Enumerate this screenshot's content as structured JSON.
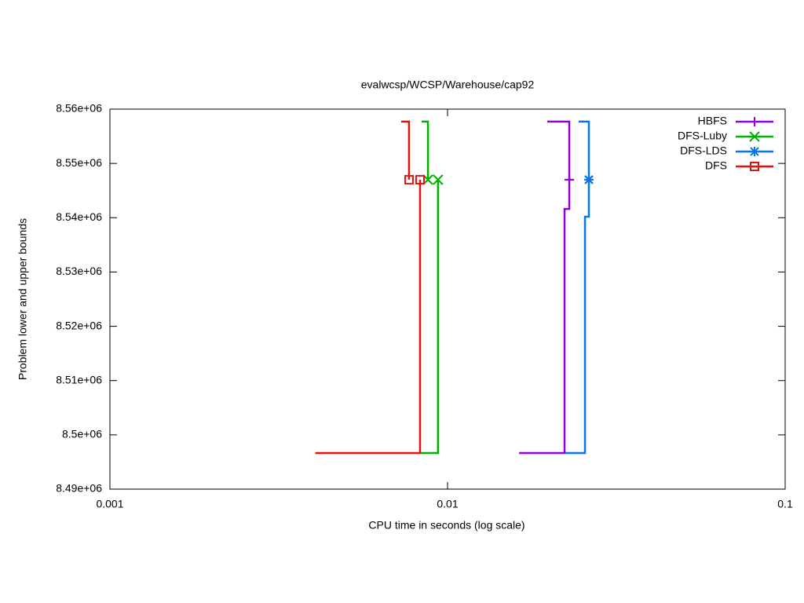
{
  "chart_data": {
    "type": "line",
    "title": "evalwcsp/WCSP/Warehouse/cap92",
    "xlabel": "CPU time in seconds (log scale)",
    "ylabel": "Problem lower and upper bounds",
    "xscale": "log",
    "xlim": [
      0.001,
      0.1
    ],
    "xticks": [
      0.001,
      0.01,
      0.1
    ],
    "ylim": [
      8490000,
      8560000
    ],
    "yticks": [
      {
        "value": 8490000,
        "label": "8.49e+06"
      },
      {
        "value": 8500000,
        "label": "8.5e+06"
      },
      {
        "value": 8510000,
        "label": "8.51e+06"
      },
      {
        "value": 8520000,
        "label": "8.52e+06"
      },
      {
        "value": 8530000,
        "label": "8.53e+06"
      },
      {
        "value": 8540000,
        "label": "8.54e+06"
      },
      {
        "value": 8550000,
        "label": "8.55e+06"
      },
      {
        "value": 8560000,
        "label": "8.56e+06"
      }
    ],
    "legend": "top-right",
    "line_style": "steps",
    "series": [
      {
        "name": "HBFS",
        "color": "#9400d3",
        "marker": "plus",
        "upper": {
          "x": [
            0.01629,
            0.02221,
            0.02294
          ],
          "y": [
            8496650,
            8541620,
            8547000
          ]
        },
        "lower": {
          "x": [
            0.01974,
            0.02294
          ],
          "y": [
            8557700,
            8547000
          ]
        }
      },
      {
        "name": "DFS-Luby",
        "color": "#00b000",
        "marker": "cross",
        "upper": {
          "x": [
            0.00829,
            0.00937
          ],
          "y": [
            8496650,
            8547000
          ]
        },
        "lower": {
          "x": [
            0.00838,
            0.00875
          ],
          "y": [
            8557700,
            8547000
          ]
        }
      },
      {
        "name": "DFS-LDS",
        "color": "#0a75e6",
        "marker": "star",
        "upper": {
          "x": [
            0.02233,
            0.02553,
            0.02622
          ],
          "y": [
            8496650,
            8540180,
            8547000
          ]
        },
        "lower": {
          "x": [
            0.02445,
            0.02622
          ],
          "y": [
            8557700,
            8547000
          ]
        }
      },
      {
        "name": "DFS",
        "color": "#e51010",
        "marker": "square",
        "upper": {
          "x": [
            0.00406,
            0.00829
          ],
          "y": [
            8496650,
            8547000
          ]
        },
        "lower": {
          "x": [
            0.00729,
            0.00769
          ],
          "y": [
            8557700,
            8547000
          ]
        }
      }
    ]
  }
}
